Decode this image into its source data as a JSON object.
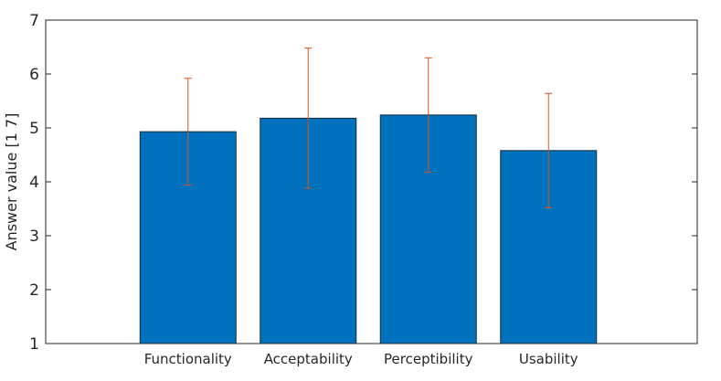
{
  "chart_data": {
    "type": "bar",
    "title": "",
    "xlabel": "",
    "ylabel": "Answer value [1 7]",
    "ylim": [
      1,
      7
    ],
    "yticks": [
      "1",
      "2",
      "3",
      "4",
      "5",
      "6",
      "7"
    ],
    "categories": [
      "Functionality",
      "Acceptability",
      "Perceptibility",
      "Usability"
    ],
    "values": [
      4.93,
      5.18,
      5.24,
      4.58
    ],
    "error_low": [
      3.94,
      3.88,
      4.18,
      3.52
    ],
    "error_high": [
      5.92,
      6.48,
      6.3,
      5.64
    ],
    "grid": false,
    "colors": {
      "bar": "#0072BD",
      "bar_edge": "#1a2a3a",
      "error": "#D95319",
      "axis": "#262626"
    }
  }
}
